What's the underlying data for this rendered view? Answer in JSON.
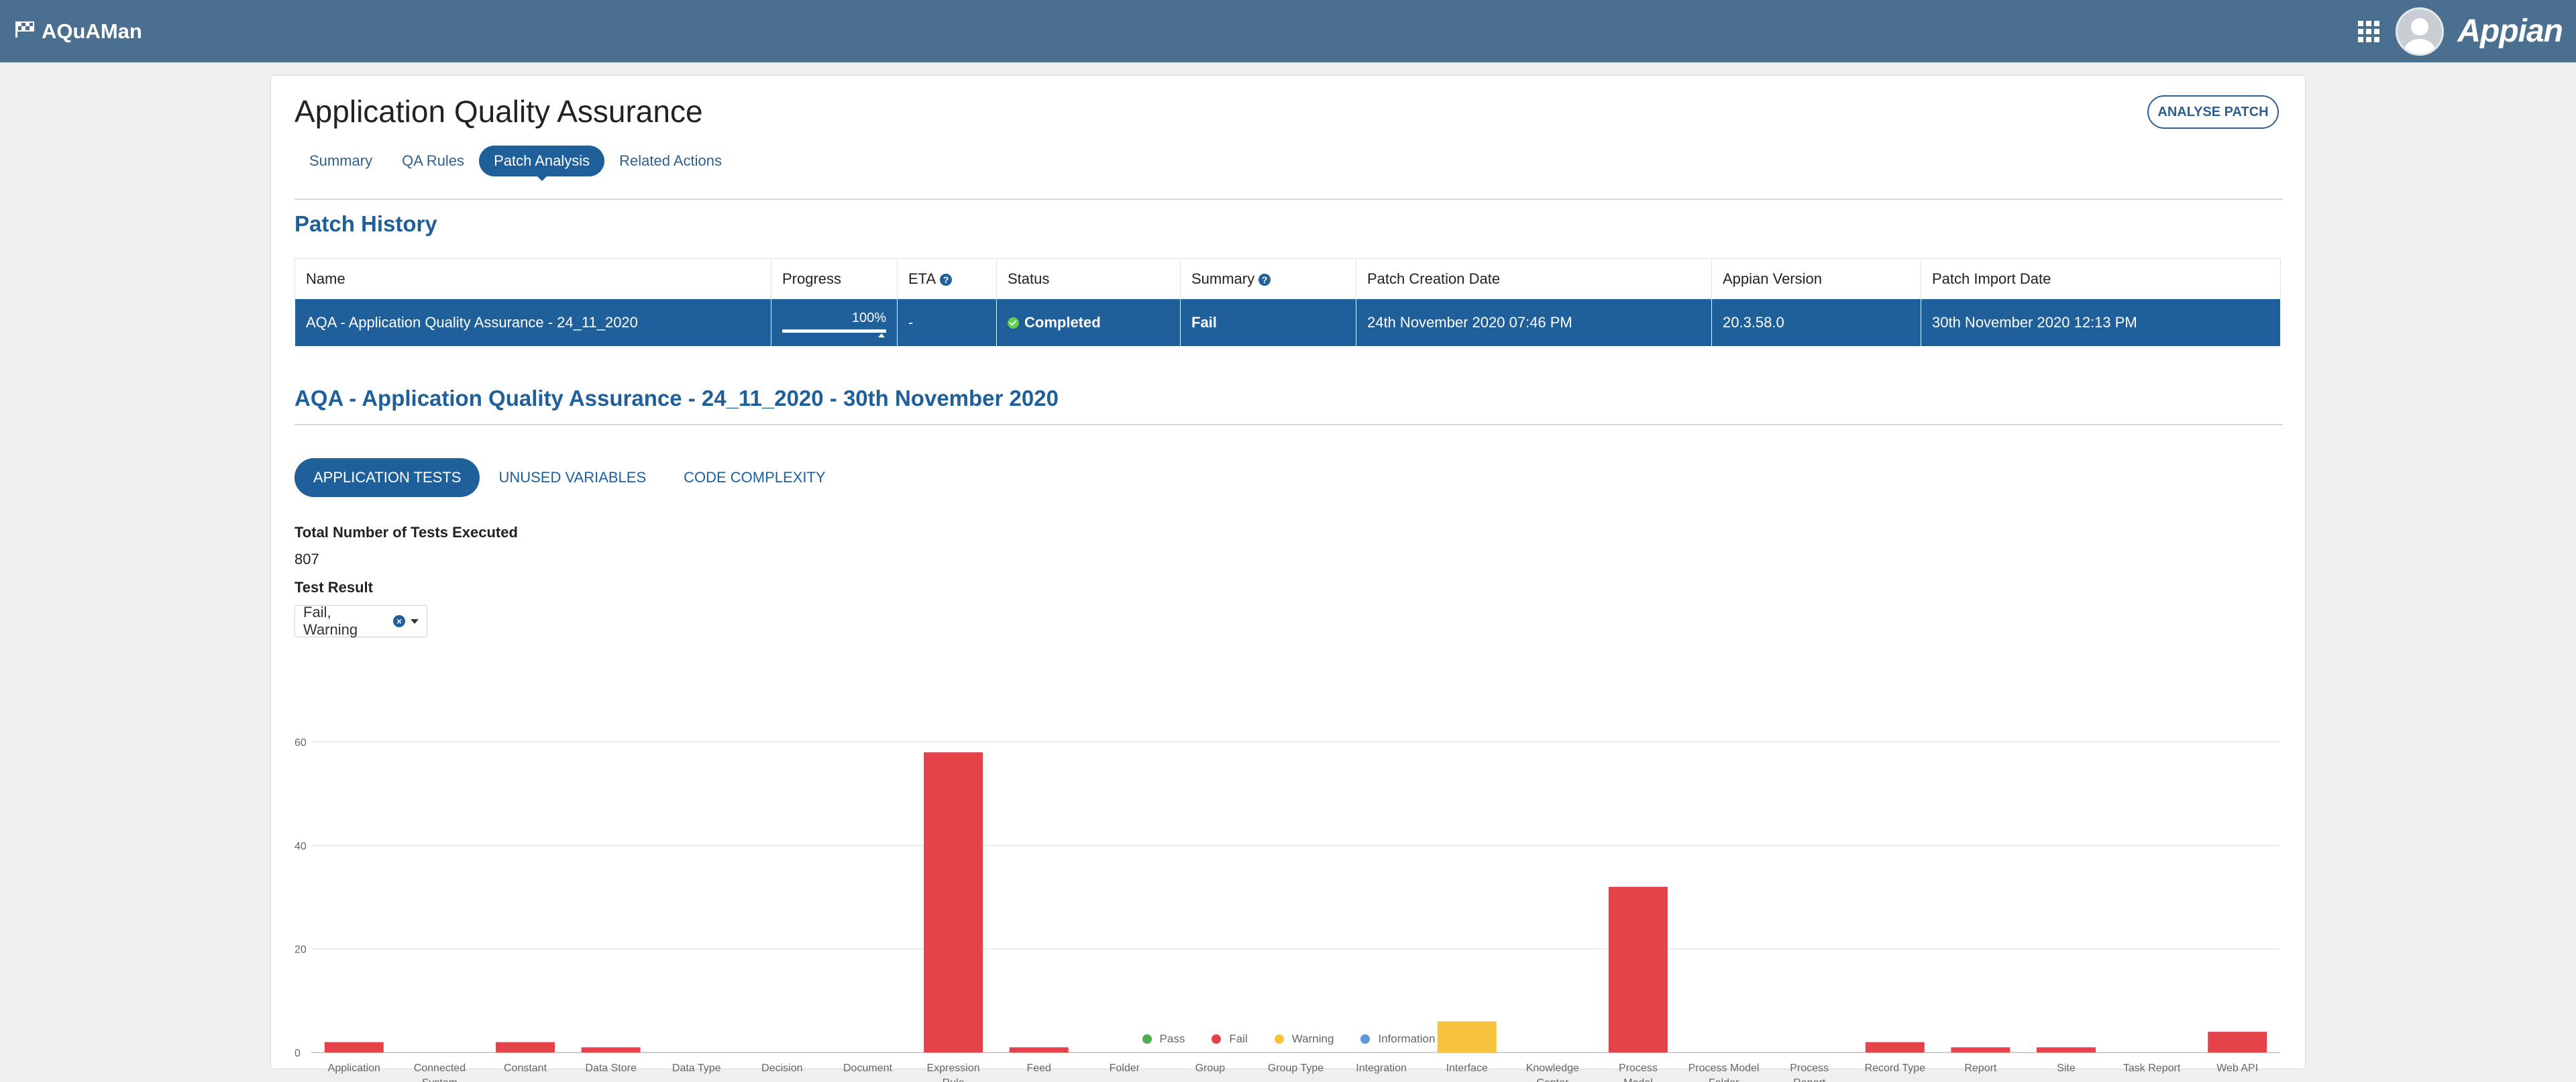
{
  "header": {
    "app_name": "AQuAMan",
    "brand": "Appian",
    "color": "#4a6f8f"
  },
  "page": {
    "title": "Application Quality Assurance",
    "analyse_button": "ANALYSE PATCH",
    "tabs": [
      {
        "label": "Summary",
        "active": false
      },
      {
        "label": "QA Rules",
        "active": false
      },
      {
        "label": "Patch Analysis",
        "active": true
      },
      {
        "label": "Related Actions",
        "active": false
      }
    ]
  },
  "patch_history": {
    "title": "Patch History",
    "columns": [
      "Name",
      "Progress",
      "ETA",
      "Status",
      "Summary",
      "Patch Creation Date",
      "Appian Version",
      "Patch Import Date"
    ],
    "row": {
      "name": "AQA - Application Quality Assurance - 24_11_2020",
      "progress_label": "100%",
      "progress": 1.0,
      "eta": "-",
      "status": "Completed",
      "summary": "Fail",
      "creation_date": "24th November 2020 07:46 PM",
      "appian_version": "20.3.58.0",
      "import_date": "30th November 2020 12:13 PM"
    }
  },
  "detail": {
    "title": "AQA - Application Quality Assurance - 24_11_2020 - 30th November 2020",
    "subtabs": [
      {
        "label": "APPLICATION TESTS",
        "active": true
      },
      {
        "label": "UNUSED VARIABLES",
        "active": false
      },
      {
        "label": "CODE COMPLEXITY",
        "active": false
      }
    ],
    "total_label": "Total Number of Tests Executed",
    "total_value": "807",
    "result_label": "Test Result",
    "result_value": "Fail, Warning"
  },
  "chart_data": {
    "type": "bar",
    "categories": [
      "Application",
      "Connected System",
      "Constant",
      "Data Store",
      "Data Type",
      "Decision",
      "Document",
      "Expression Rule",
      "Feed",
      "Folder",
      "Group",
      "Group Type",
      "Integration",
      "Interface",
      "Knowledge Center",
      "Process Model",
      "Process Model Folder",
      "Process Report",
      "Record Type",
      "Report",
      "Site",
      "Task Report",
      "Web API"
    ],
    "series": [
      {
        "name": "Pass",
        "color": "#4caf50",
        "values": [
          0,
          0,
          0,
          0,
          0,
          0,
          0,
          0,
          0,
          0,
          0,
          0,
          0,
          0,
          0,
          0,
          0,
          0,
          0,
          0,
          0,
          0,
          0
        ]
      },
      {
        "name": "Fail",
        "color": "#e5434a",
        "values": [
          2,
          0,
          2,
          1,
          0,
          0,
          0,
          58,
          1,
          0,
          0,
          0,
          0,
          0,
          0,
          32,
          0,
          0,
          2,
          1,
          1,
          0,
          4
        ]
      },
      {
        "name": "Warning",
        "color": "#f7c23e",
        "values": [
          0,
          0,
          0,
          0,
          0,
          0,
          0,
          0,
          0,
          0,
          0,
          0,
          0,
          6,
          0,
          0,
          0,
          0,
          0,
          0,
          0,
          0,
          0
        ]
      },
      {
        "name": "Information",
        "color": "#5b9bd5",
        "values": [
          0,
          0,
          0,
          0,
          0,
          0,
          0,
          0,
          0,
          0,
          0,
          0,
          0,
          0,
          0,
          0,
          0,
          0,
          0,
          0,
          0,
          0,
          0
        ]
      }
    ],
    "ylim": [
      0,
      60
    ],
    "yticks": [
      0,
      20,
      40,
      60
    ],
    "grid": true,
    "legend": "bottom-center"
  }
}
